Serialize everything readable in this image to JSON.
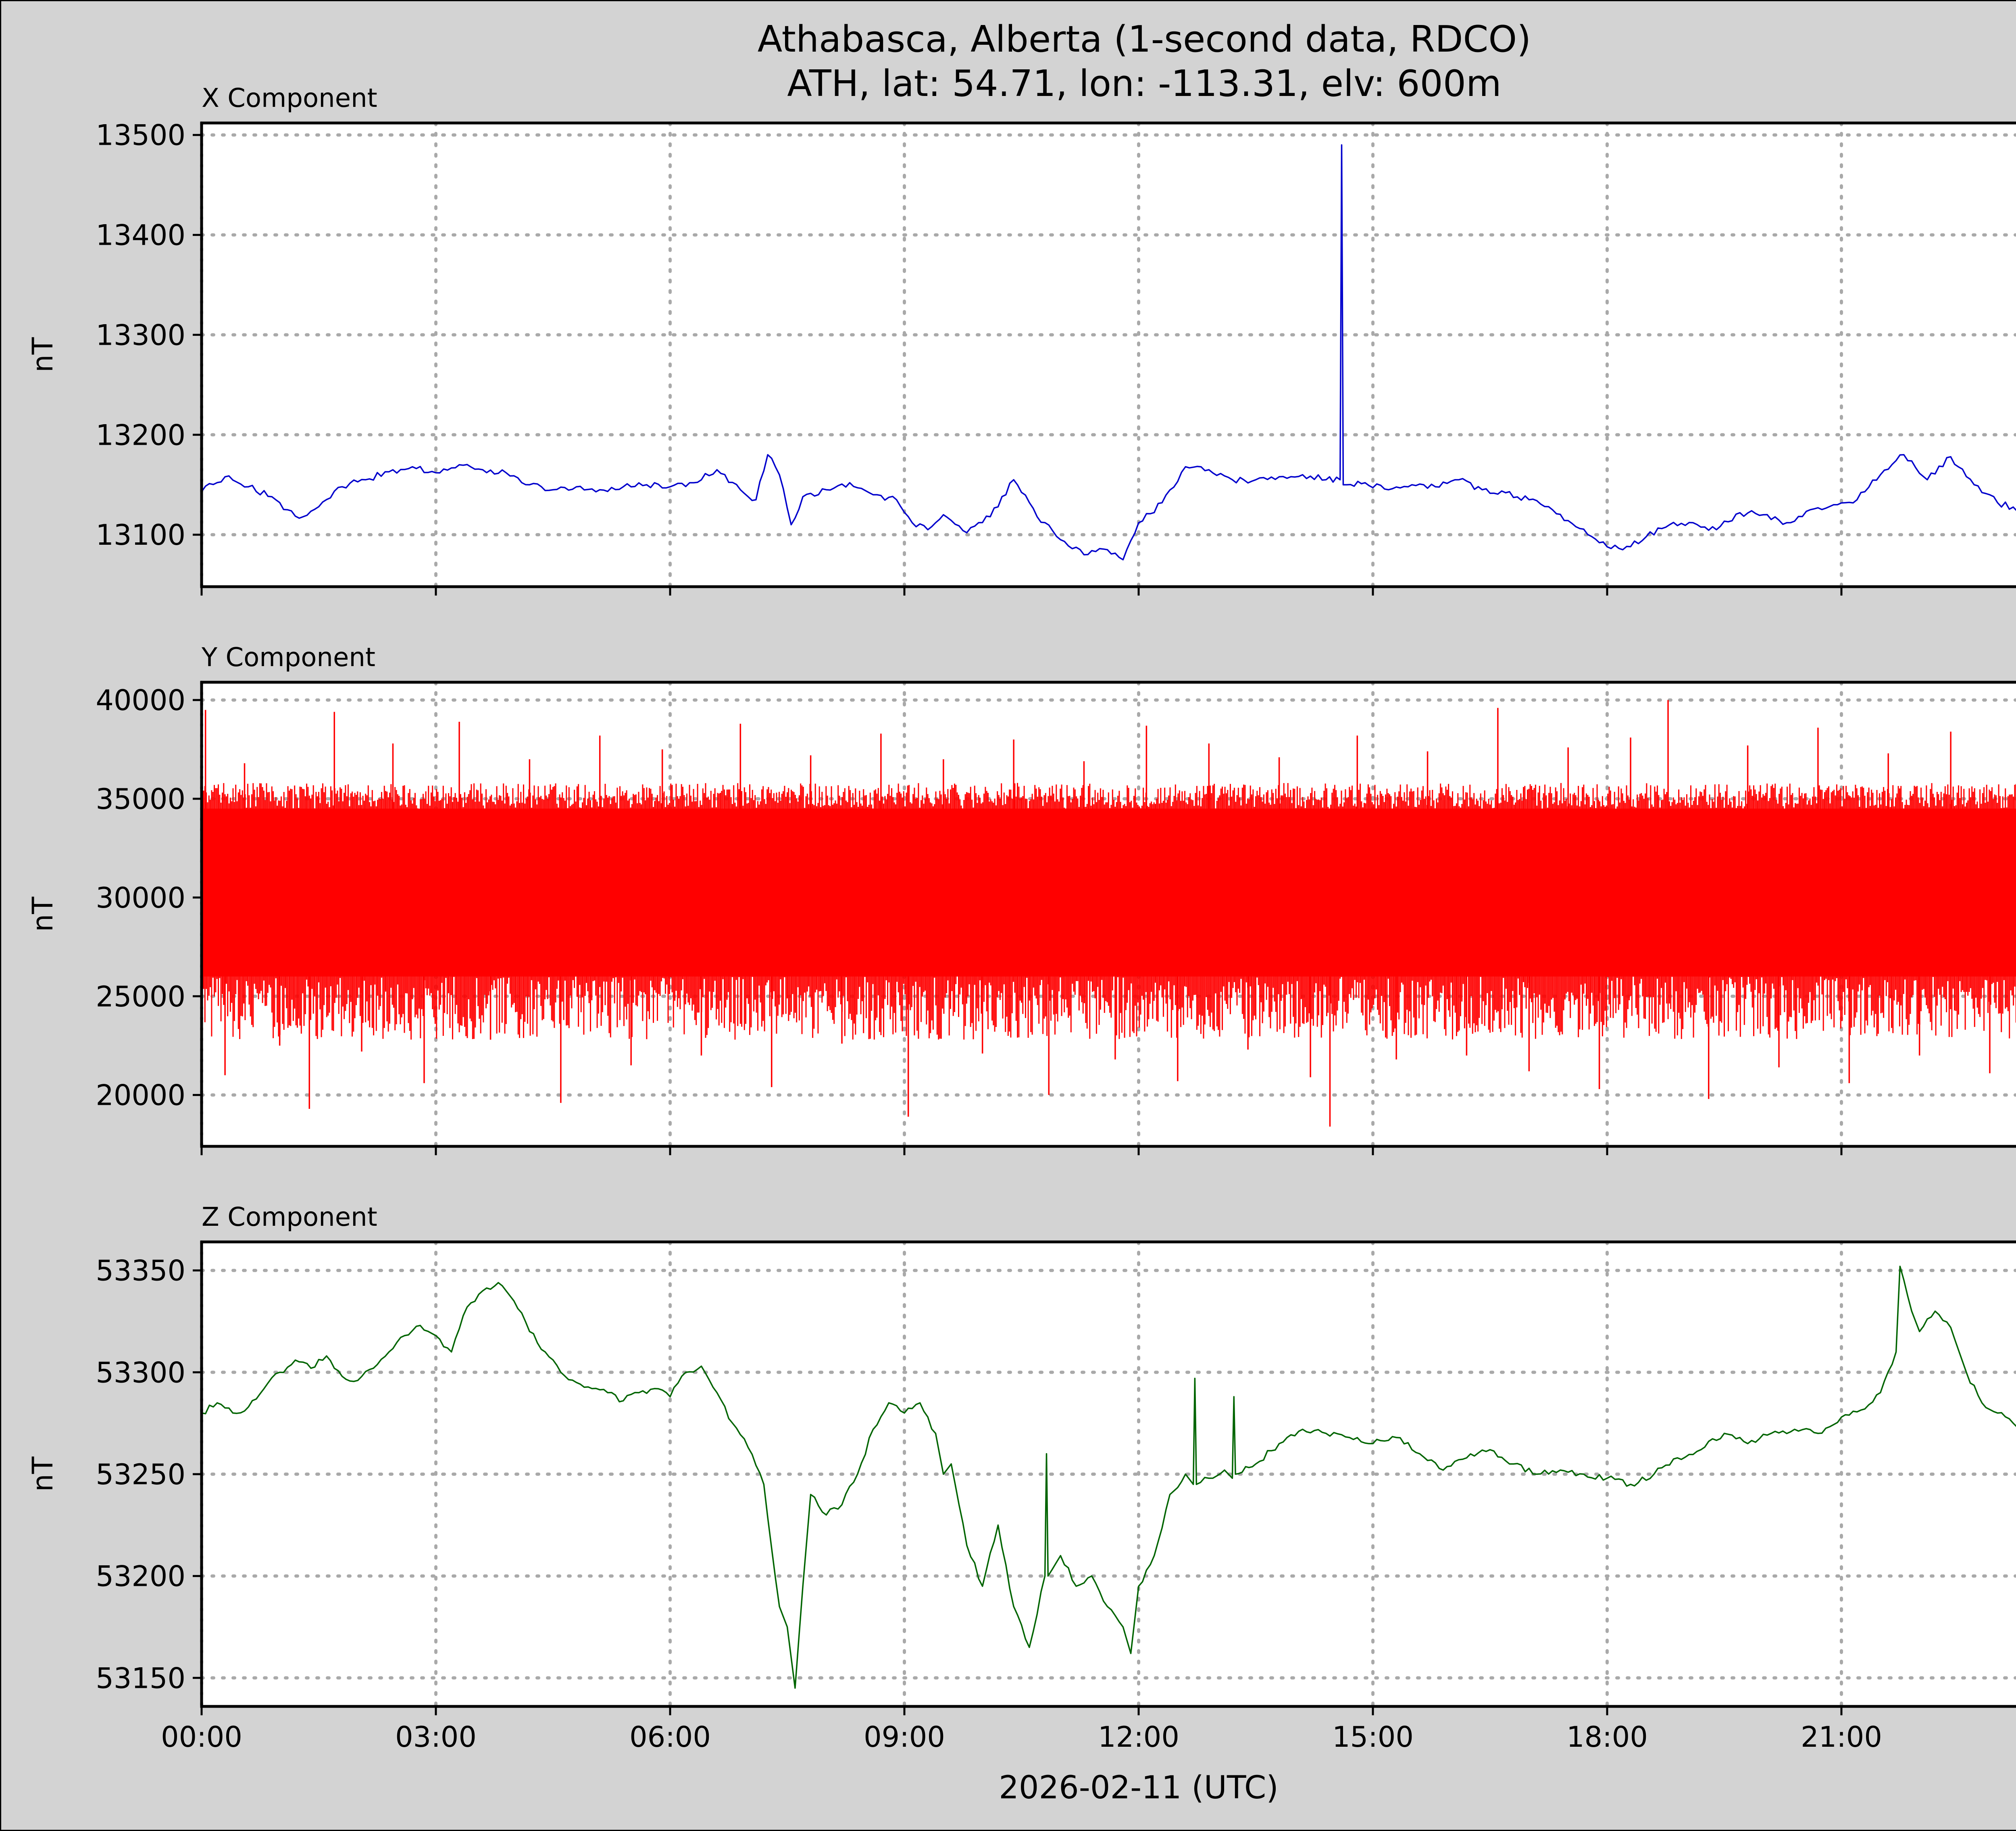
{
  "chart_data": {
    "type": "line",
    "title": "Athabasca, Alberta (1-second data, RDCO)",
    "subtitle": "ATH, lat: 54.71, lon: -113.31, elv: 600m",
    "xlabel": "2026-02-11 (UTC)",
    "x_ticks": [
      "00:00",
      "03:00",
      "06:00",
      "09:00",
      "12:00",
      "15:00",
      "18:00",
      "21:00"
    ],
    "xlim": [
      0,
      24
    ],
    "grid": true,
    "panels": [
      {
        "name": "X Component",
        "ylabel": "nT",
        "color": "#0000cc",
        "ylim": [
          13048,
          13512
        ],
        "yticks": [
          13100,
          13200,
          13300,
          13400,
          13500
        ],
        "x": [
          0,
          0.3,
          0.6,
          0.9,
          1.1,
          1.3,
          1.5,
          1.8,
          2.1,
          2.4,
          2.7,
          3.0,
          3.3,
          3.6,
          3.9,
          4.2,
          4.5,
          4.8,
          5.1,
          5.4,
          5.7,
          6.0,
          6.3,
          6.6,
          6.9,
          7.1,
          7.25,
          7.4,
          7.55,
          7.7,
          8.0,
          8.3,
          8.6,
          8.9,
          9.1,
          9.3,
          9.5,
          9.8,
          10.1,
          10.4,
          10.7,
          11.0,
          11.3,
          11.6,
          11.8,
          12.0,
          12.3,
          12.6,
          12.9,
          13.2,
          13.5,
          13.8,
          14.1,
          14.4,
          14.58,
          14.6,
          14.62,
          14.9,
          15.2,
          15.5,
          15.8,
          16.1,
          16.4,
          16.7,
          17.0,
          17.3,
          17.6,
          17.9,
          18.2,
          18.5,
          18.8,
          19.1,
          19.4,
          19.7,
          20.0,
          20.3,
          20.6,
          20.9,
          21.2,
          21.5,
          21.8,
          22.1,
          22.4,
          22.7,
          23.0,
          23.3,
          23.6,
          23.85,
          24.0
        ],
        "values": [
          13143,
          13158,
          13148,
          13138,
          13125,
          13118,
          13128,
          13148,
          13155,
          13163,
          13168,
          13162,
          13170,
          13165,
          13162,
          13150,
          13145,
          13148,
          13145,
          13148,
          13150,
          13148,
          13152,
          13165,
          13145,
          13135,
          13180,
          13160,
          13110,
          13138,
          13145,
          13152,
          13140,
          13135,
          13112,
          13105,
          13120,
          13102,
          13118,
          13155,
          13118,
          13095,
          13080,
          13085,
          13075,
          13112,
          13132,
          13168,
          13165,
          13155,
          13155,
          13158,
          13160,
          13155,
          13155,
          13490,
          13150,
          13152,
          13145,
          13150,
          13148,
          13155,
          13145,
          13142,
          13135,
          13125,
          13108,
          13092,
          13085,
          13098,
          13110,
          13112,
          13105,
          13122,
          13120,
          13112,
          13125,
          13130,
          13135,
          13160,
          13180,
          13155,
          13178,
          13150,
          13132,
          13125,
          13128,
          13135,
          13158
        ]
      },
      {
        "name": "Y Component",
        "ylabel": "nT",
        "color": "#ff0000",
        "ylim": [
          17400,
          40900
        ],
        "yticks": [
          20000,
          25000,
          30000,
          35000,
          40000
        ],
        "band": [
          26000,
          34500
        ],
        "upper_noise": 35800,
        "lower_noise": 22800,
        "x": [
          0.05,
          0.3,
          0.55,
          1.0,
          1.38,
          1.7,
          2.05,
          2.45,
          2.85,
          3.3,
          3.7,
          4.2,
          4.6,
          5.1,
          5.5,
          5.9,
          6.4,
          6.9,
          7.3,
          7.8,
          8.2,
          8.7,
          9.05,
          9.5,
          10.0,
          10.4,
          10.85,
          11.3,
          11.7,
          12.1,
          12.5,
          12.9,
          13.4,
          13.8,
          14.2,
          14.45,
          14.8,
          15.3,
          15.7,
          16.2,
          16.6,
          17.0,
          17.5,
          17.9,
          18.3,
          18.78,
          19.3,
          19.8,
          20.2,
          20.7,
          21.1,
          21.6,
          22.0,
          22.4,
          22.9,
          23.3,
          23.7
        ],
        "values": [
          39500,
          21000,
          36800,
          22500,
          19300,
          39400,
          22200,
          37800,
          20600,
          38900,
          22800,
          37000,
          19600,
          38200,
          21500,
          37500,
          22000,
          38800,
          20400,
          37200,
          22600,
          38300,
          18900,
          37000,
          22100,
          38000,
          20000,
          36900,
          21800,
          38700,
          20700,
          37800,
          22300,
          37100,
          20900,
          18400,
          38200,
          21800,
          37400,
          22000,
          39600,
          21200,
          37600,
          20300,
          38100,
          40000,
          19800,
          37700,
          21400,
          38600,
          20600,
          37300,
          22000,
          38400,
          21100,
          37800,
          20100
        ]
      },
      {
        "name": "Z Component",
        "ylabel": "nT",
        "color": "#006400",
        "ylim": [
          53136,
          53364
        ],
        "yticks": [
          53150,
          53200,
          53250,
          53300,
          53350
        ],
        "x": [
          0,
          0.2,
          0.4,
          0.6,
          0.8,
          1.0,
          1.2,
          1.4,
          1.6,
          1.8,
          2.0,
          2.2,
          2.4,
          2.6,
          2.8,
          3.0,
          3.2,
          3.4,
          3.6,
          3.8,
          4.0,
          4.2,
          4.4,
          4.6,
          4.8,
          5.0,
          5.2,
          5.4,
          5.6,
          5.8,
          6.0,
          6.2,
          6.4,
          6.6,
          6.8,
          7.0,
          7.2,
          7.4,
          7.5,
          7.6,
          7.7,
          7.8,
          8.0,
          8.2,
          8.4,
          8.6,
          8.8,
          9.0,
          9.2,
          9.4,
          9.5,
          9.6,
          9.8,
          10.0,
          10.2,
          10.4,
          10.6,
          10.8,
          10.82,
          10.84,
          11.0,
          11.2,
          11.4,
          11.6,
          11.8,
          11.9,
          12.0,
          12.2,
          12.4,
          12.6,
          12.7,
          12.72,
          12.74,
          12.9,
          13.1,
          13.2,
          13.22,
          13.24,
          13.5,
          13.8,
          14.1,
          14.4,
          14.7,
          15.0,
          15.3,
          15.6,
          15.9,
          16.2,
          16.5,
          16.8,
          17.1,
          17.4,
          17.7,
          18.0,
          18.3,
          18.6,
          18.9,
          19.2,
          19.5,
          19.8,
          20.1,
          20.4,
          20.7,
          21.0,
          21.3,
          21.5,
          21.7,
          21.75,
          21.9,
          22.0,
          22.2,
          22.4,
          22.6,
          22.8,
          23.0,
          23.2,
          23.4,
          23.6,
          23.8,
          24.0
        ],
        "values": [
          53280,
          53285,
          53280,
          53283,
          53292,
          53300,
          53306,
          53302,
          53308,
          53298,
          53296,
          53302,
          53310,
          53318,
          53323,
          53318,
          53310,
          53332,
          53340,
          53344,
          53335,
          53320,
          53310,
          53300,
          53295,
          53292,
          53290,
          53286,
          53290,
          53292,
          53288,
          53300,
          53303,
          53290,
          53275,
          53263,
          53245,
          53185,
          53175,
          53145,
          53195,
          53240,
          53230,
          53235,
          53250,
          53272,
          53285,
          53280,
          53285,
          53270,
          53250,
          53255,
          53215,
          53195,
          53225,
          53185,
          53165,
          53200,
          53260,
          53200,
          53210,
          53195,
          53200,
          53185,
          53175,
          53162,
          53195,
          53210,
          53240,
          53250,
          53245,
          53297,
          53245,
          53248,
          53252,
          53248,
          53288,
          53250,
          53255,
          53265,
          53272,
          53270,
          53268,
          53265,
          53268,
          53260,
          53252,
          53258,
          53262,
          53255,
          53250,
          53252,
          53250,
          53248,
          53245,
          53250,
          53258,
          53262,
          53270,
          53265,
          53270,
          53272,
          53270,
          53278,
          53282,
          53290,
          53310,
          53352,
          53330,
          53320,
          53330,
          53322,
          53300,
          53285,
          53280,
          53275,
          53270,
          53268,
          53270,
          53285
        ]
      }
    ]
  }
}
